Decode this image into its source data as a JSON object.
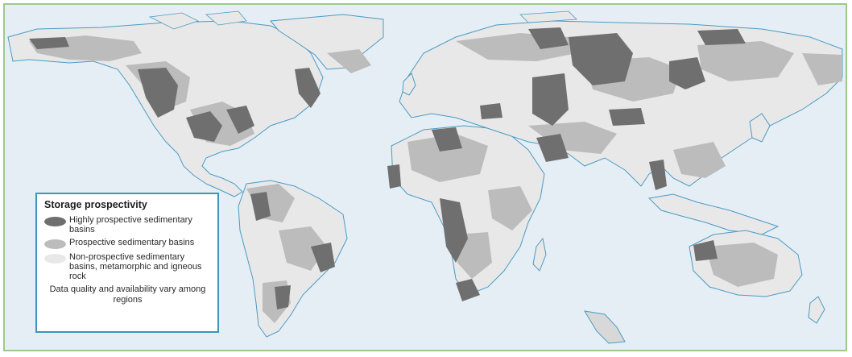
{
  "colors": {
    "ocean": "#e6eef5",
    "land": "#e8e8e8",
    "non_prospective": "#e8e8e8",
    "prospective": "#bcbcbc",
    "highly_prospective": "#6f6f6f",
    "coastline": "#4a9bc4",
    "legend_border": "#3d95b7",
    "frame_border": "#9cc98a"
  },
  "legend": {
    "title": "Storage prospectivity",
    "items": [
      {
        "label": "Highly prospective sedimentary basins",
        "key": "highly_prospective"
      },
      {
        "label": "Prospective sedimentary basins",
        "key": "prospective"
      },
      {
        "label": "Non-prospective sedimentary basins, metamorphic and igneous rock",
        "key": "non_prospective"
      }
    ],
    "note": "Data quality and availability vary among regions"
  }
}
